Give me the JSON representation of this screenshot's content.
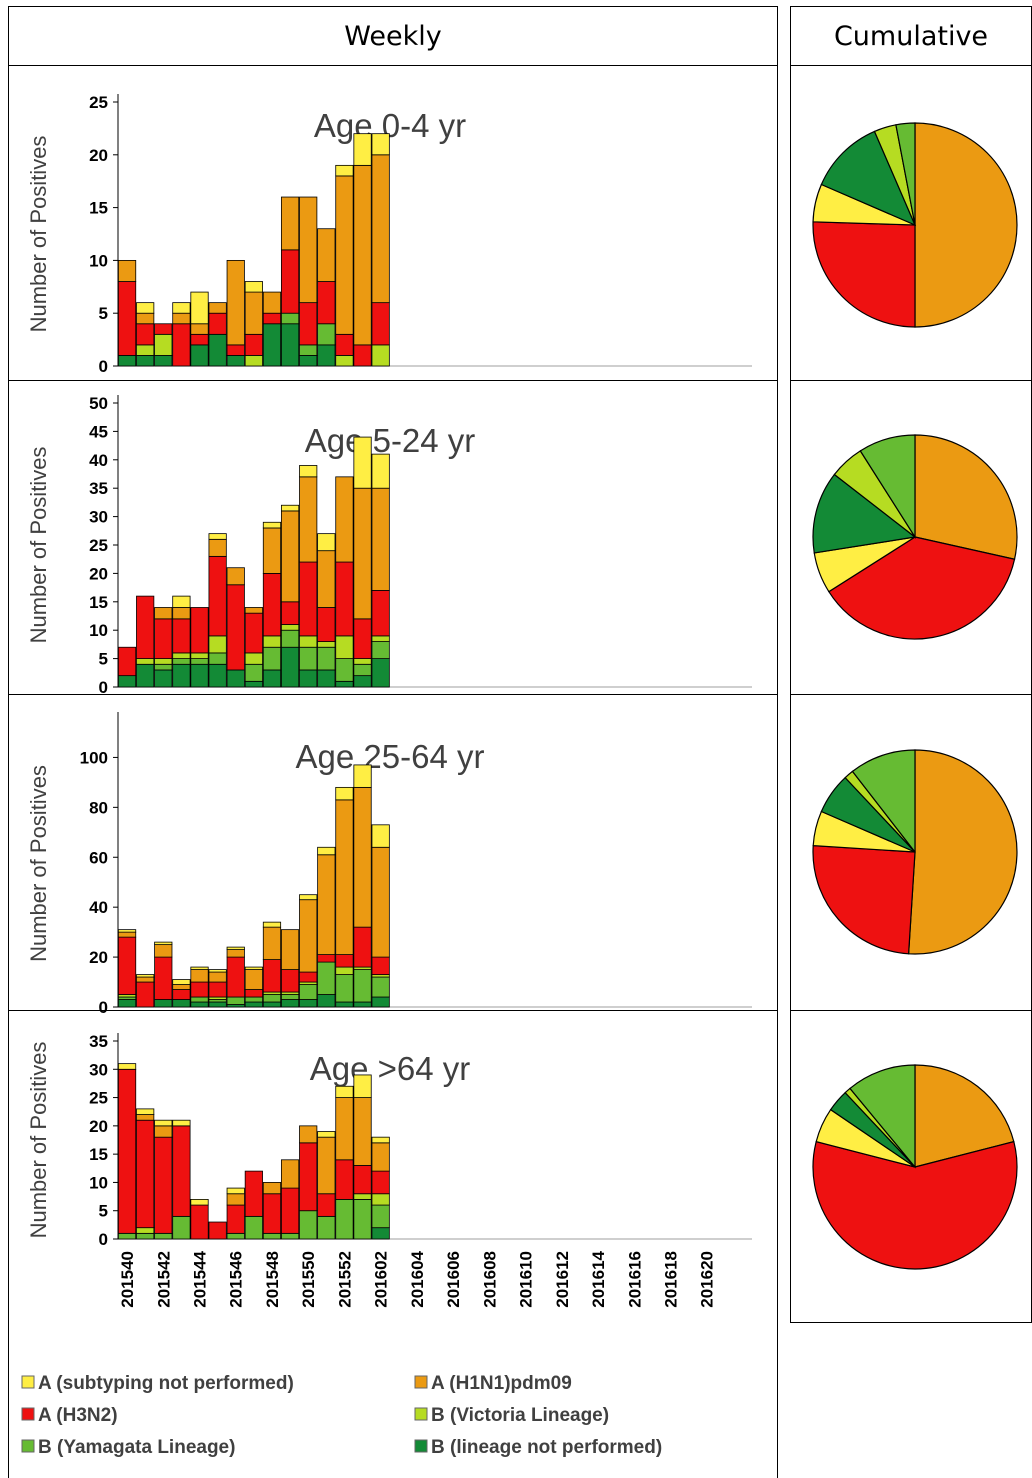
{
  "headers": {
    "weekly": "Weekly",
    "cumulative": "Cumulative"
  },
  "colors": {
    "A (subtyping not performed)": "#ffee44",
    "A (H1N1)pdm09": "#eb9a12",
    "A (H3N2)": "#ee1111",
    "B (Victoria Lineage)": "#b6dc22",
    "B (Yamagata Lineage)": "#66bb33",
    "B (lineage not performed)": "#138a36"
  },
  "legend": [
    "A (subtyping not performed)",
    "A (H1N1)pdm09",
    "A (H3N2)",
    "B (Victoria Lineage)",
    "B (Yamagata Lineage)",
    "B (lineage not performed)"
  ],
  "chart_data": [
    {
      "type": "bar",
      "stacked": true,
      "title": "Age 0-4 yr",
      "ylabel": "Number of Positives",
      "ylim": [
        0,
        25
      ],
      "yticks": [
        0,
        5,
        10,
        15,
        20,
        25
      ],
      "categories": [
        "201540",
        "201541",
        "201542",
        "201543",
        "201544",
        "201545",
        "201546",
        "201547",
        "201548",
        "201549",
        "201550",
        "201551",
        "201552",
        "201553",
        "201602"
      ],
      "series": [
        {
          "name": "B (lineage not performed)",
          "values": [
            1,
            1,
            1,
            0,
            2,
            3,
            1,
            0,
            4,
            4,
            1,
            2,
            0,
            0,
            0
          ]
        },
        {
          "name": "B (Yamagata Lineage)",
          "values": [
            0,
            0,
            0,
            0,
            0,
            0,
            0,
            0,
            0,
            1,
            1,
            2,
            0,
            0,
            0
          ]
        },
        {
          "name": "B (Victoria Lineage)",
          "values": [
            0,
            1,
            2,
            0,
            0,
            0,
            0,
            1,
            0,
            0,
            0,
            0,
            1,
            0,
            2
          ]
        },
        {
          "name": "A (H3N2)",
          "values": [
            7,
            2,
            1,
            4,
            1,
            2,
            1,
            2,
            1,
            6,
            4,
            4,
            2,
            2,
            4
          ]
        },
        {
          "name": "A (H1N1)pdm09",
          "values": [
            2,
            1,
            0,
            1,
            1,
            1,
            8,
            4,
            2,
            5,
            10,
            5,
            15,
            17,
            14
          ]
        },
        {
          "name": "A (subtyping not performed)",
          "values": [
            0,
            1,
            0,
            1,
            3,
            0,
            0,
            1,
            0,
            0,
            0,
            0,
            1,
            3,
            2
          ]
        }
      ]
    },
    {
      "type": "bar",
      "stacked": true,
      "title": "Age 5-24 yr",
      "ylabel": "Number of Positives",
      "ylim": [
        0,
        50
      ],
      "yticks": [
        0,
        5,
        10,
        15,
        20,
        25,
        30,
        35,
        40,
        45,
        50
      ],
      "categories": [
        "201540",
        "201541",
        "201542",
        "201543",
        "201544",
        "201545",
        "201546",
        "201547",
        "201548",
        "201549",
        "201550",
        "201551",
        "201552",
        "201553",
        "201602"
      ],
      "series": [
        {
          "name": "B (lineage not performed)",
          "values": [
            2,
            4,
            3,
            4,
            4,
            4,
            3,
            1,
            3,
            7,
            3,
            3,
            1,
            2,
            5
          ]
        },
        {
          "name": "B (Yamagata Lineage)",
          "values": [
            0,
            0,
            1,
            1,
            1,
            2,
            0,
            3,
            4,
            3,
            4,
            4,
            4,
            2,
            3
          ]
        },
        {
          "name": "B (Victoria Lineage)",
          "values": [
            0,
            1,
            1,
            1,
            1,
            3,
            0,
            2,
            2,
            1,
            2,
            1,
            4,
            1,
            1
          ]
        },
        {
          "name": "A (H3N2)",
          "values": [
            5,
            11,
            7,
            6,
            8,
            14,
            15,
            7,
            11,
            4,
            13,
            6,
            13,
            7,
            8
          ]
        },
        {
          "name": "A (H1N1)pdm09",
          "values": [
            0,
            0,
            2,
            2,
            0,
            3,
            3,
            1,
            8,
            16,
            15,
            10,
            15,
            23,
            18
          ]
        },
        {
          "name": "A (subtyping not performed)",
          "values": [
            0,
            0,
            0,
            2,
            0,
            1,
            0,
            0,
            1,
            1,
            2,
            3,
            0,
            9,
            6
          ]
        }
      ]
    },
    {
      "type": "bar",
      "stacked": true,
      "title": "Age 25-64 yr",
      "ylabel": "Number of Positives",
      "ylim": [
        0,
        115
      ],
      "yticks": [
        0,
        20,
        40,
        60,
        80,
        100
      ],
      "categories": [
        "201540",
        "201541",
        "201542",
        "201543",
        "201544",
        "201545",
        "201546",
        "201547",
        "201548",
        "201549",
        "201550",
        "201551",
        "201552",
        "201553",
        "201602"
      ],
      "series": [
        {
          "name": "B (lineage not performed)",
          "values": [
            3,
            0,
            3,
            3,
            2,
            2,
            1,
            2,
            2,
            3,
            3,
            5,
            2,
            2,
            4
          ]
        },
        {
          "name": "B (Yamagata Lineage)",
          "values": [
            1,
            0,
            0,
            0,
            2,
            1,
            3,
            2,
            3,
            2,
            6,
            13,
            11,
            13,
            8
          ]
        },
        {
          "name": "B (Victoria Lineage)",
          "values": [
            1,
            0,
            0,
            0,
            0,
            1,
            0,
            0,
            1,
            1,
            1,
            0,
            3,
            1,
            1
          ]
        },
        {
          "name": "A (H3N2)",
          "values": [
            23,
            10,
            17,
            4,
            6,
            6,
            16,
            3,
            13,
            9,
            4,
            3,
            5,
            16,
            7
          ]
        },
        {
          "name": "A (H1N1)pdm09",
          "values": [
            2,
            2,
            5,
            2,
            5,
            4,
            3,
            8,
            13,
            16,
            29,
            40,
            62,
            56,
            44
          ]
        },
        {
          "name": "A (subtyping not performed)",
          "values": [
            1,
            1,
            1,
            2,
            1,
            1,
            1,
            1,
            2,
            0,
            2,
            3,
            5,
            9,
            9
          ]
        }
      ]
    },
    {
      "type": "bar",
      "stacked": true,
      "title": "Age >64 yr",
      "ylabel": "Number of Positives",
      "ylim": [
        0,
        35
      ],
      "yticks": [
        0,
        5,
        10,
        15,
        20,
        25,
        30,
        35
      ],
      "categories": [
        "201540",
        "201541",
        "201542",
        "201543",
        "201544",
        "201545",
        "201546",
        "201547",
        "201548",
        "201549",
        "201550",
        "201551",
        "201552",
        "201553",
        "201602"
      ],
      "series": [
        {
          "name": "B (lineage not performed)",
          "values": [
            0,
            0,
            0,
            0,
            0,
            0,
            0,
            0,
            0,
            0,
            0,
            0,
            0,
            0,
            2
          ]
        },
        {
          "name": "B (Yamagata Lineage)",
          "values": [
            1,
            1,
            1,
            4,
            0,
            0,
            1,
            4,
            1,
            1,
            5,
            4,
            7,
            7,
            4
          ]
        },
        {
          "name": "B (Victoria Lineage)",
          "values": [
            0,
            1,
            0,
            0,
            0,
            0,
            0,
            0,
            0,
            0,
            0,
            0,
            0,
            1,
            2
          ]
        },
        {
          "name": "A (H3N2)",
          "values": [
            29,
            19,
            17,
            16,
            6,
            3,
            5,
            8,
            7,
            8,
            12,
            4,
            7,
            5,
            4
          ]
        },
        {
          "name": "A (H1N1)pdm09",
          "values": [
            0,
            1,
            2,
            0,
            0,
            0,
            2,
            0,
            2,
            5,
            3,
            10,
            11,
            12,
            5
          ]
        },
        {
          "name": "A (subtyping not performed)",
          "values": [
            1,
            1,
            1,
            1,
            1,
            0,
            1,
            0,
            0,
            0,
            0,
            1,
            2,
            4,
            1
          ]
        }
      ]
    },
    {
      "type": "pie",
      "title": "",
      "labels": [
        "A (H1N1)pdm09",
        "A (H3N2)",
        "A (subtyping not performed)",
        "B (lineage not performed)",
        "B (Victoria Lineage)",
        "B (Yamagata Lineage)"
      ],
      "values": [
        50,
        25.5,
        6,
        12,
        3.5,
        3
      ]
    },
    {
      "type": "pie",
      "title": "",
      "labels": [
        "A (H1N1)pdm09",
        "A (H3N2)",
        "A (subtyping not performed)",
        "B (lineage not performed)",
        "B (Victoria Lineage)",
        "B (Yamagata Lineage)"
      ],
      "values": [
        28.5,
        37.5,
        6.5,
        13,
        5.5,
        9
      ]
    },
    {
      "type": "pie",
      "title": "",
      "labels": [
        "A (H1N1)pdm09",
        "A (H3N2)",
        "A (subtyping not performed)",
        "B (lineage not performed)",
        "B (Victoria Lineage)",
        "B (Yamagata Lineage)"
      ],
      "values": [
        51,
        25,
        5.5,
        6.5,
        1.5,
        10.5
      ]
    },
    {
      "type": "pie",
      "title": "",
      "labels": [
        "A (H1N1)pdm09",
        "A (H3N2)",
        "A (subtyping not performed)",
        "B (lineage not performed)",
        "B (Victoria Lineage)",
        "B (Yamagata Lineage)"
      ],
      "values": [
        21,
        58,
        5.5,
        3.5,
        1,
        11
      ]
    }
  ],
  "x_axis_ticks": [
    "201540",
    "201542",
    "201544",
    "201546",
    "201548",
    "201550",
    "201552",
    "201602",
    "201604",
    "201606",
    "201608",
    "201610",
    "201612",
    "201614",
    "201616",
    "201618",
    "201620"
  ]
}
